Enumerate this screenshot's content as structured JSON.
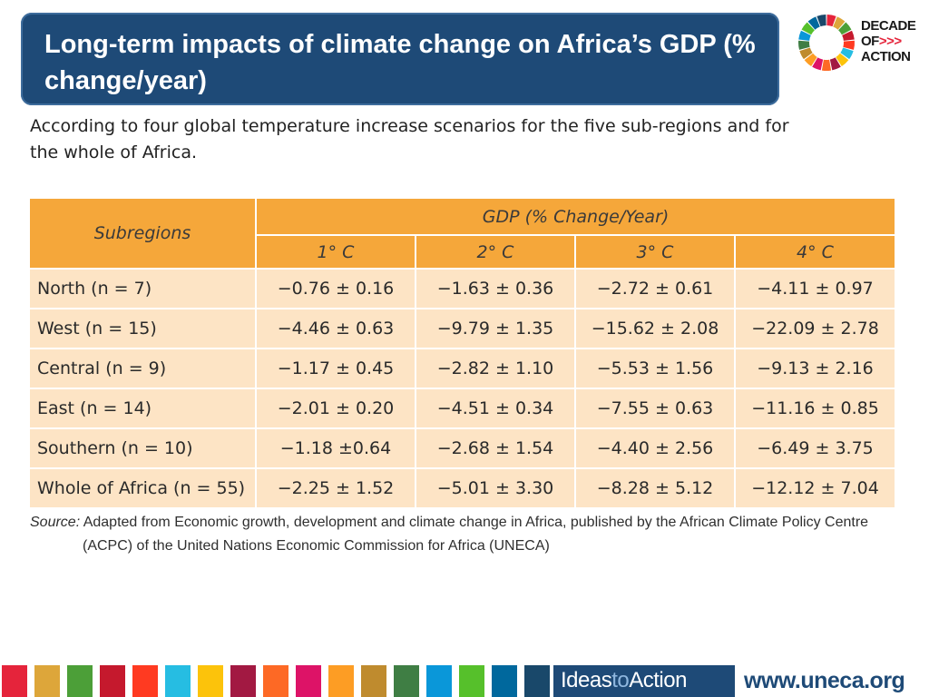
{
  "title": "Long-term impacts of climate change on Africa’s GDP (% change/year)",
  "subtitle": "According to four global temperature increase scenarios for the five sub-regions and for the whole of Africa.",
  "logo": {
    "line1": "DECADE",
    "line2": "OF",
    "chevrons": ">>>",
    "line3": "ACTION"
  },
  "table": {
    "subregions_header": "Subregions",
    "group_header": "GDP (% Change/Year)",
    "columns": [
      "1° C",
      "2° C",
      "3° C",
      "4° C"
    ],
    "rows": [
      {
        "label": "North (n = 7)",
        "values": [
          "−0.76 ± 0.16",
          "−1.63 ± 0.36",
          "−2.72 ± 0.61",
          "−4.11 ± 0.97"
        ]
      },
      {
        "label": "West (n = 15)",
        "values": [
          "−4.46 ± 0.63",
          "−9.79 ± 1.35",
          "−15.62 ± 2.08",
          "−22.09 ± 2.78"
        ]
      },
      {
        "label": "Central (n = 9)",
        "values": [
          "−1.17 ± 0.45",
          "−2.82 ± 1.10",
          "−5.53 ± 1.56",
          "−9.13 ± 2.16"
        ]
      },
      {
        "label": "East (n = 14)",
        "values": [
          "−2.01 ± 0.20",
          "−4.51 ± 0.34",
          "−7.55 ± 0.63",
          "−11.16 ± 0.85"
        ]
      },
      {
        "label": "Southern (n = 10)",
        "values": [
          "−1.18 ±0.64",
          "−2.68 ± 1.54",
          "−4.40 ± 2.56",
          "−6.49 ± 3.75"
        ]
      },
      {
        "label": "Whole of Africa (n = 55)",
        "values": [
          "−2.25 ± 1.52",
          "−5.01 ± 3.30",
          "−8.28 ± 5.12",
          "−12.12 ± 7.04"
        ]
      }
    ]
  },
  "source": {
    "label": "Source:",
    "line1": "Adapted from Economic growth, development and climate change in Africa, published by the African Climate Policy Centre",
    "line2": "(ACPC) of the United Nations Economic Commission for Africa (UNECA)"
  },
  "footer": {
    "ideas": "Ideas",
    "to": "to",
    "action": "Action",
    "site": "www.uneca.org"
  },
  "colors": {
    "title_bg": "#1e4a77",
    "table_header": "#f5a73a",
    "table_body": "#fde4c5",
    "sdg_strip": [
      "#e5243b",
      "#dda63a",
      "#4c9f38",
      "#c5192d",
      "#ff3a21",
      "#26bde2",
      "#fcc30b",
      "#a21942",
      "#fd6925",
      "#dd1367",
      "#fd9d24",
      "#bf8b2e",
      "#3f7e44",
      "#0a97d9",
      "#56c02b",
      "#00689d",
      "#19486a"
    ]
  }
}
